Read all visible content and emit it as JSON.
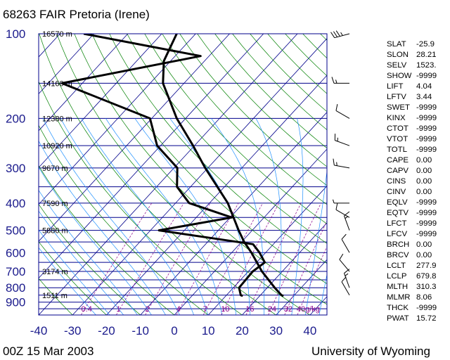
{
  "header": {
    "title": "68263 FAIR Pretoria (Irene)"
  },
  "footer": {
    "left": "00Z 15 Mar 2003",
    "right": "University of Wyoming"
  },
  "chart_data": {
    "type": "skew-t",
    "pressure_ticks": [
      100,
      200,
      300,
      400,
      500,
      600,
      700,
      800,
      900
    ],
    "temperature_ticks": [
      -40,
      -30,
      -20,
      -10,
      0,
      10,
      20,
      30,
      40
    ],
    "xlim": [
      -40,
      45
    ],
    "ylim": [
      1000,
      100
    ],
    "height_labels": [
      {
        "p": 100,
        "label": "16570 m"
      },
      {
        "p": 150,
        "label": "14160 m"
      },
      {
        "p": 200,
        "label": "12380 m"
      },
      {
        "p": 250,
        "label": "10920 m"
      },
      {
        "p": 300,
        "label": "9670 m"
      },
      {
        "p": 400,
        "label": "7590 m"
      },
      {
        "p": 500,
        "label": "5880 m"
      },
      {
        "p": 700,
        "label": "3174 m"
      },
      {
        "p": 850,
        "label": "1511 m"
      }
    ],
    "mixing_ratio_labels": [
      "0.4",
      "1",
      "2",
      "4",
      "7",
      "10",
      "16",
      "24",
      "32",
      "40g/kg"
    ],
    "mixing_ratio_values": [
      0.4,
      1,
      2,
      4,
      7,
      10,
      16,
      24,
      32,
      40
    ],
    "temperature_profile": [
      {
        "p": 855,
        "t": 27.0
      },
      {
        "p": 850,
        "t": 26.2
      },
      {
        "p": 800,
        "t": 22.2
      },
      {
        "p": 700,
        "t": 14.0
      },
      {
        "p": 600,
        "t": 5.8
      },
      {
        "p": 550,
        "t": 0.8
      },
      {
        "p": 500,
        "t": -4.0
      },
      {
        "p": 400,
        "t": -14.6
      },
      {
        "p": 300,
        "t": -30.8
      },
      {
        "p": 250,
        "t": -40.4
      },
      {
        "p": 200,
        "t": -52.6
      },
      {
        "p": 150,
        "t": -66.2
      },
      {
        "p": 125,
        "t": -72.0
      },
      {
        "p": 100,
        "t": -75.6
      }
    ],
    "dewpoint_profile": [
      {
        "p": 855,
        "t": 15.0
      },
      {
        "p": 850,
        "t": 14.2
      },
      {
        "p": 800,
        "t": 11.7
      },
      {
        "p": 700,
        "t": 11.3
      },
      {
        "p": 650,
        "t": 12.4
      },
      {
        "p": 600,
        "t": 8.2
      },
      {
        "p": 560,
        "t": 4.0
      },
      {
        "p": 500,
        "t": -27.5
      },
      {
        "p": 450,
        "t": -9.5
      },
      {
        "p": 400,
        "t": -26.0
      },
      {
        "p": 350,
        "t": -34.0
      },
      {
        "p": 300,
        "t": -39.0
      },
      {
        "p": 250,
        "t": -51.0
      },
      {
        "p": 200,
        "t": -60.5
      },
      {
        "p": 150,
        "t": -96.0
      },
      {
        "p": 120,
        "t": -62.5
      },
      {
        "p": 100,
        "t": -103.0
      }
    ],
    "wind_barbs": [
      {
        "p": 850,
        "dir": 330,
        "speed": 10
      },
      {
        "p": 800,
        "dir": 340,
        "speed": 15
      },
      {
        "p": 700,
        "dir": 320,
        "speed": 10
      },
      {
        "p": 600,
        "dir": 330,
        "speed": 10
      },
      {
        "p": 500,
        "dir": 340,
        "speed": 15
      },
      {
        "p": 450,
        "dir": 300,
        "speed": 10
      },
      {
        "p": 400,
        "dir": 270,
        "speed": 5
      },
      {
        "p": 300,
        "dir": 280,
        "speed": 15
      },
      {
        "p": 250,
        "dir": 290,
        "speed": 15
      },
      {
        "p": 200,
        "dir": 300,
        "speed": 10
      },
      {
        "p": 150,
        "dir": 270,
        "speed": 15
      },
      {
        "p": 100,
        "dir": 255,
        "speed": 35
      }
    ]
  },
  "indices": [
    {
      "name": "SLAT",
      "value": "-25.9"
    },
    {
      "name": "SLON",
      "value": "28.21"
    },
    {
      "name": "SELV",
      "value": "1523."
    },
    {
      "name": "SHOW",
      "value": "-9999"
    },
    {
      "name": "LIFT",
      "value": "4.04"
    },
    {
      "name": "LFTV",
      "value": "3.44"
    },
    {
      "name": "SWET",
      "value": "-9999"
    },
    {
      "name": "KINX",
      "value": "-9999"
    },
    {
      "name": "CTOT",
      "value": "-9999"
    },
    {
      "name": "VTOT",
      "value": "-9999"
    },
    {
      "name": "TOTL",
      "value": "-9999"
    },
    {
      "name": "CAPE",
      "value": "0.00"
    },
    {
      "name": "CAPV",
      "value": "0.00"
    },
    {
      "name": "CINS",
      "value": "0.00"
    },
    {
      "name": "CINV",
      "value": "0.00"
    },
    {
      "name": "EQLV",
      "value": "-9999"
    },
    {
      "name": "EQTV",
      "value": "-9999"
    },
    {
      "name": "LFCT",
      "value": "-9999"
    },
    {
      "name": "LFCV",
      "value": "-9999"
    },
    {
      "name": "BRCH",
      "value": "0.00"
    },
    {
      "name": "BRCV",
      "value": "0.00"
    },
    {
      "name": "LCLT",
      "value": "277.9"
    },
    {
      "name": "LCLP",
      "value": "679.8"
    },
    {
      "name": "MLTH",
      "value": "310.3"
    },
    {
      "name": "MLMR",
      "value": "8.06"
    },
    {
      "name": "THCK",
      "value": "-9999"
    },
    {
      "name": "PWAT",
      "value": "15.72"
    }
  ],
  "colors": {
    "isobar": "#00008b",
    "isotherm": "#00008b",
    "dry_adiabat": "#008000",
    "moist_adiabat": "#1e90ff",
    "mixing_ratio": "#8b008b",
    "profile": "#000000"
  }
}
